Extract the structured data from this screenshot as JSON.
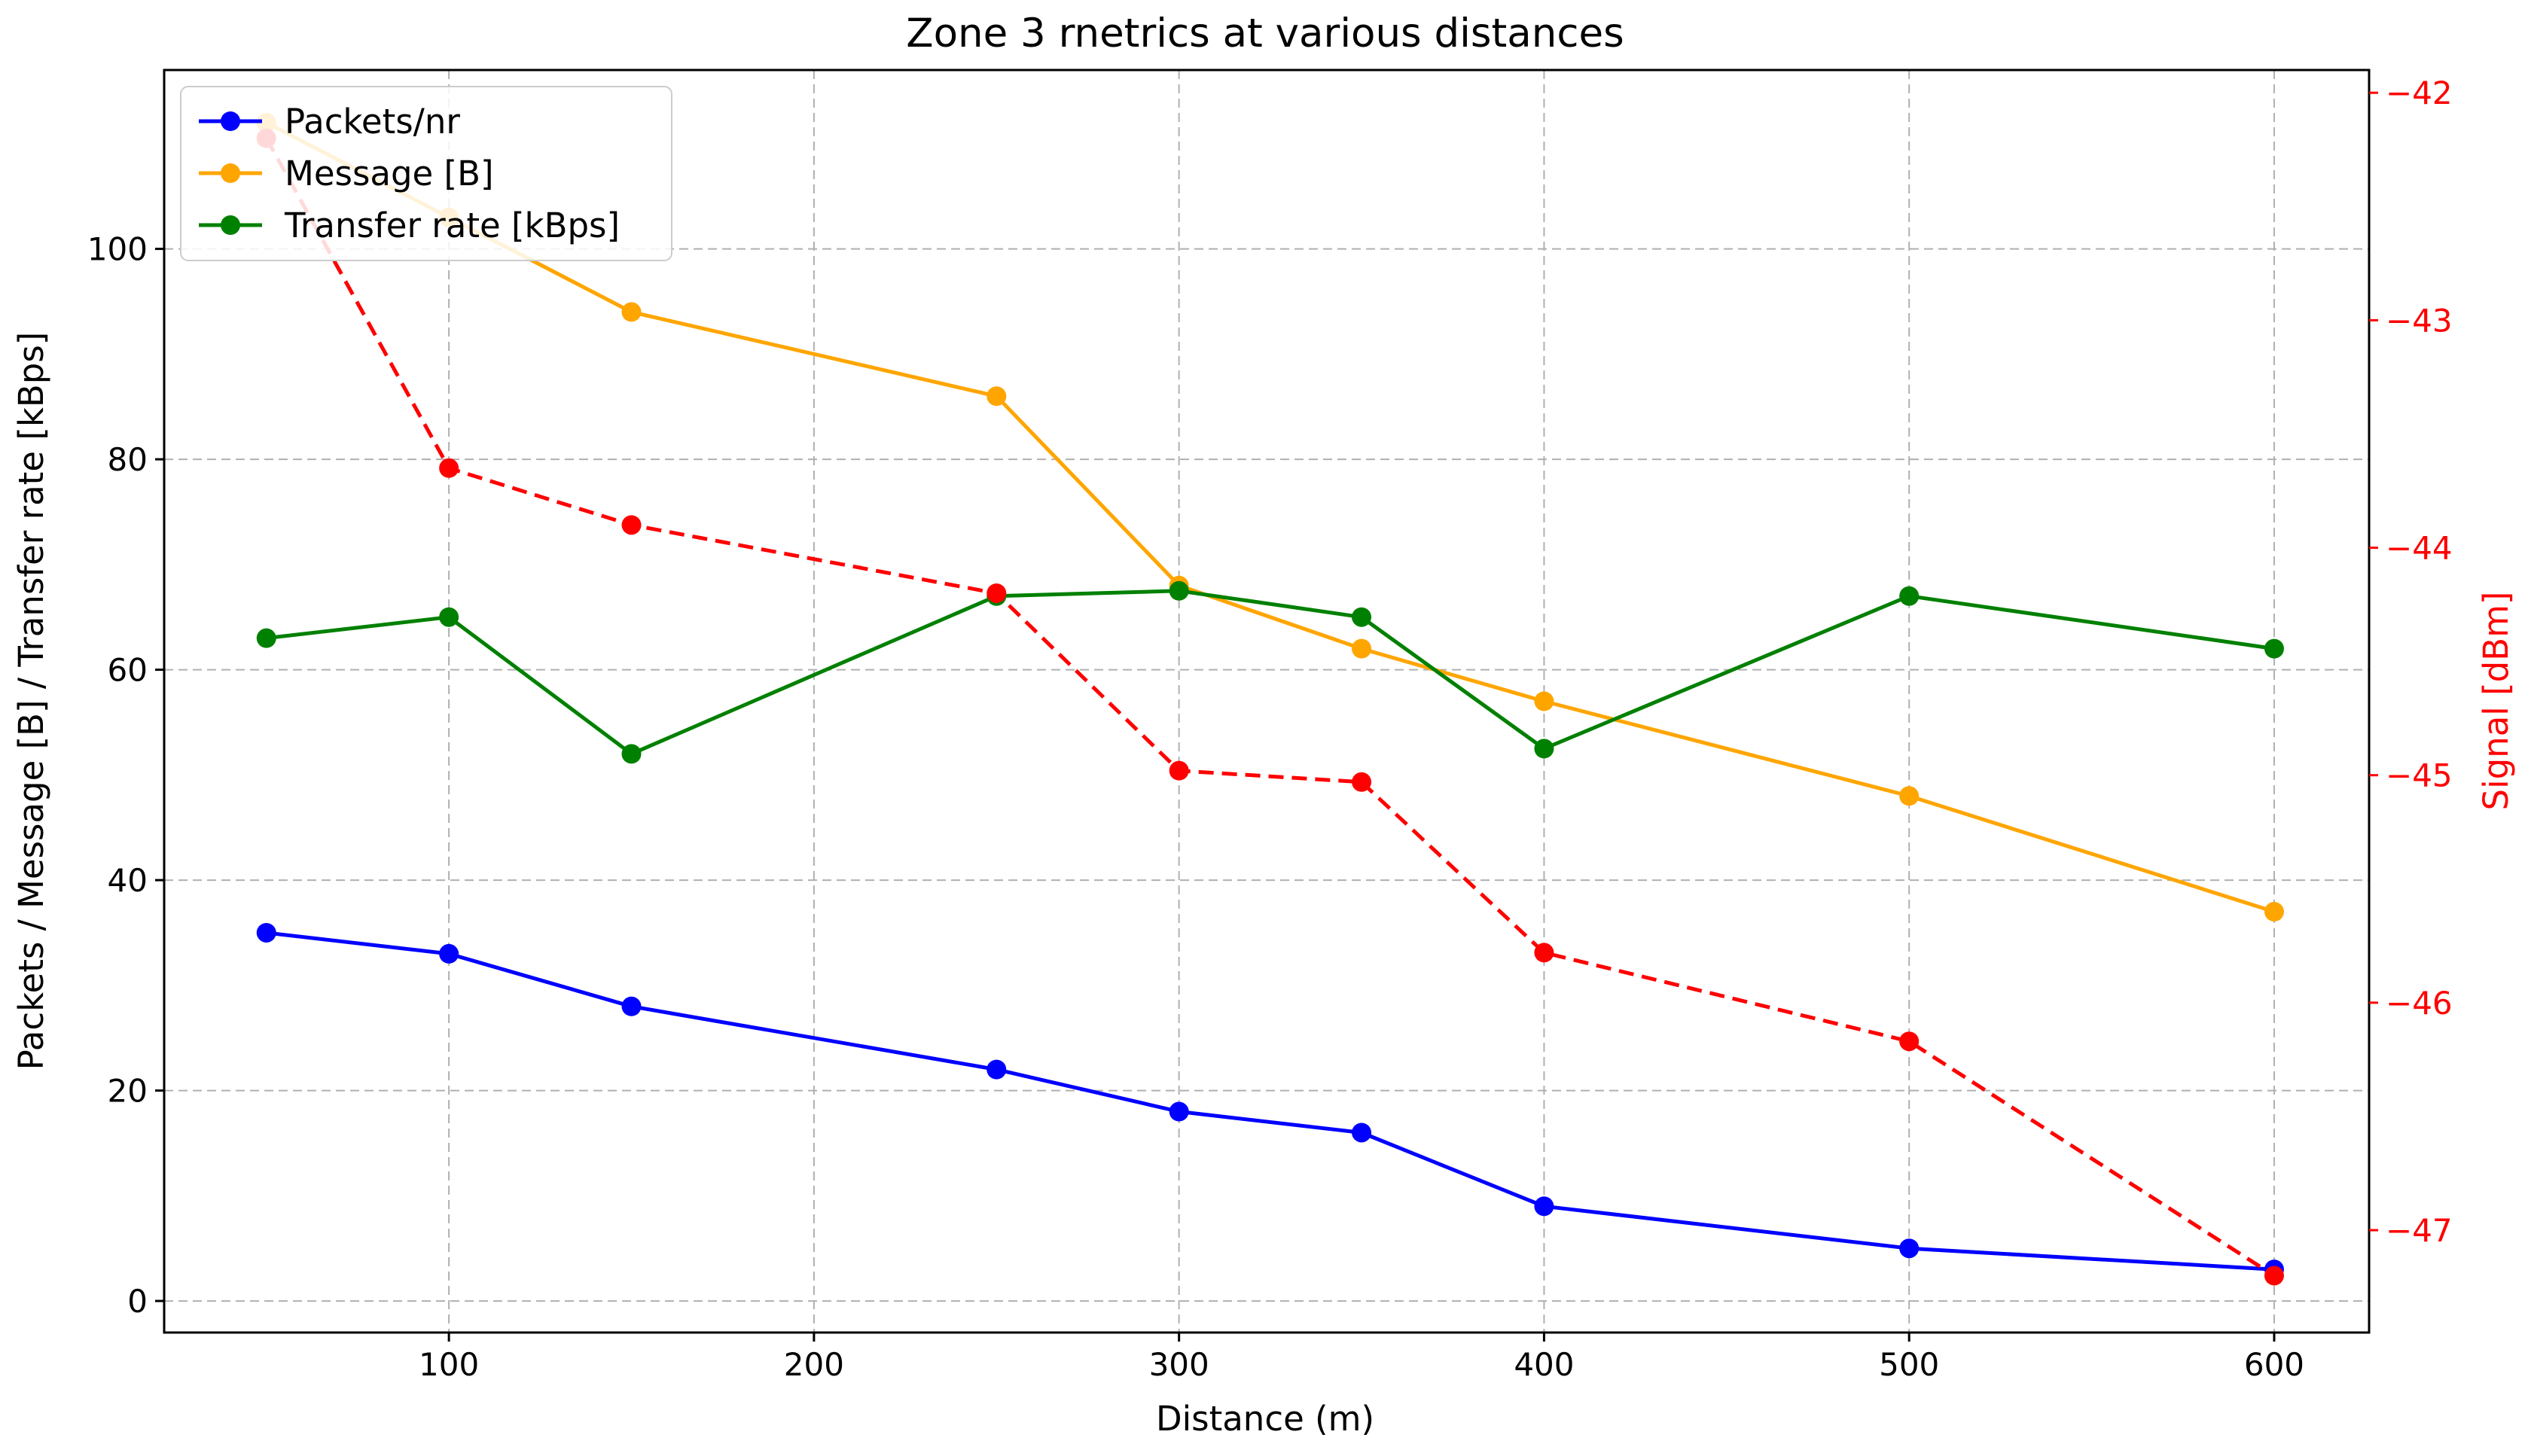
{
  "chart_data": {
    "type": "line",
    "title": "Zone 3 rnetrics at various distances",
    "xlabel": "Distance (m)",
    "ylabel": "Packets / Message [B] / Transfer rate [kBps]",
    "y2label": "Signal [dBm]",
    "x": [
      50,
      100,
      150,
      250,
      300,
      350,
      400,
      500,
      600
    ],
    "xlim": [
      22,
      626
    ],
    "ylim": [
      -3,
      117
    ],
    "y2lim": [
      -47.45,
      -41.9
    ],
    "xticks": [
      100,
      200,
      300,
      400,
      500,
      600
    ],
    "yticks": [
      0,
      20,
      40,
      60,
      80,
      100
    ],
    "y2ticks": [
      -47,
      -46,
      -45,
      -44,
      -43,
      -42
    ],
    "grid": true,
    "legend_position": "top-left",
    "series": [
      {
        "name": "Packets/nr",
        "axis": "left",
        "color": "#0000ff",
        "style": "solid",
        "values": [
          35,
          33,
          28,
          22,
          18,
          16,
          9,
          5,
          3
        ]
      },
      {
        "name": "Message [B]",
        "axis": "left",
        "color": "#ffa500",
        "style": "solid",
        "values": [
          112,
          103,
          94,
          86,
          68,
          62,
          57,
          48,
          37
        ]
      },
      {
        "name": "Transfer rate [kBps]",
        "axis": "left",
        "color": "#008000",
        "style": "solid",
        "values": [
          63,
          65,
          52,
          67,
          67.5,
          65,
          52.5,
          67,
          62
        ]
      },
      {
        "name": "Signal",
        "axis": "right",
        "color": "#ff0000",
        "style": "dashed",
        "in_legend": false,
        "values": [
          -42.2,
          -43.65,
          -43.9,
          -44.2,
          -44.98,
          -45.03,
          -45.78,
          -46.17,
          -47.2
        ]
      }
    ]
  }
}
